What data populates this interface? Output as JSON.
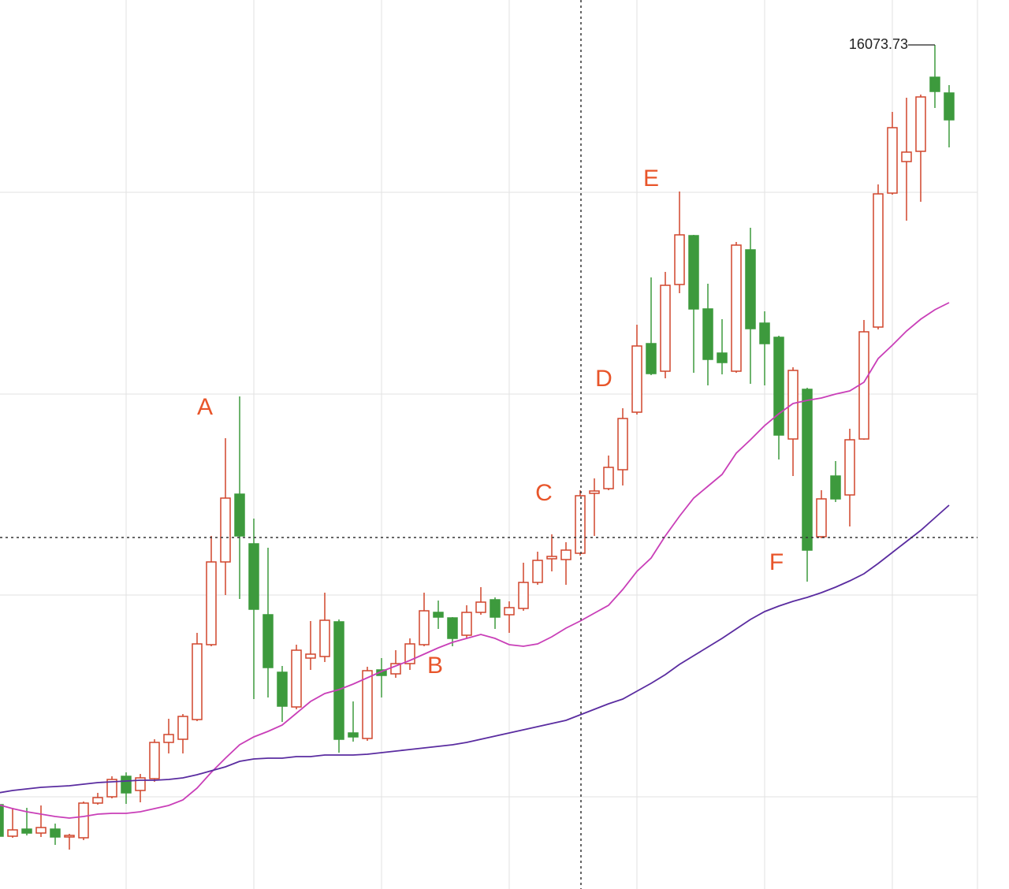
{
  "chart_data": {
    "type": "candlestick",
    "categories": [
      null,
      null,
      null,
      null,
      null,
      null,
      null,
      null,
      null,
      null,
      null,
      null,
      null,
      null,
      null,
      null,
      null,
      null,
      null,
      null,
      null,
      null,
      null,
      null,
      null,
      null,
      null,
      null,
      null,
      null,
      null,
      null,
      null,
      null,
      null,
      null,
      null,
      null,
      null,
      null,
      null,
      null,
      null,
      null,
      null,
      null,
      null,
      null,
      null,
      null,
      null,
      null,
      null,
      null,
      null,
      null,
      null,
      null,
      null,
      null,
      null,
      null,
      null,
      null,
      null,
      null,
      null,
      null
    ],
    "open": [
      6434,
      6034,
      6124,
      6074,
      6124,
      6024,
      6014,
      6454,
      6534,
      6794,
      6614,
      6764,
      7224,
      7264,
      7514,
      8464,
      9514,
      10374,
      9744,
      8844,
      8114,
      7674,
      8294,
      8314,
      8754,
      7344,
      7274,
      8144,
      8094,
      8224,
      8464,
      8874,
      8804,
      8584,
      8874,
      9034,
      8844,
      8924,
      9254,
      9554,
      9544,
      9624,
      10384,
      10444,
      10684,
      11414,
      12284,
      11934,
      13034,
      13654,
      12724,
      12164,
      11934,
      13474,
      12544,
      12364,
      11074,
      11704,
      9834,
      10604,
      10364,
      11074,
      12494,
      14194,
      14594,
      14724,
      15664,
      15464
    ],
    "high": [
      6484,
      6394,
      6394,
      6424,
      6194,
      6064,
      6474,
      6584,
      6794,
      6844,
      6824,
      7264,
      7524,
      7584,
      8614,
      9844,
      11084,
      11614,
      10064,
      9694,
      8194,
      8464,
      8764,
      9124,
      8784,
      7744,
      8184,
      8294,
      8394,
      8544,
      9124,
      9024,
      8814,
      8964,
      9194,
      9064,
      9014,
      9504,
      9644,
      9864,
      9764,
      10424,
      10574,
      10864,
      11464,
      12524,
      13124,
      13194,
      14214,
      13664,
      13044,
      12594,
      13574,
      13754,
      12694,
      12384,
      11984,
      11724,
      10424,
      10794,
      11204,
      12584,
      14304,
      15224,
      15404,
      15444,
      16073.73,
      15564
    ],
    "low": [
      5984,
      6014,
      6044,
      6024,
      5924,
      5864,
      5984,
      6434,
      6514,
      6444,
      6464,
      6724,
      7084,
      7084,
      7494,
      8444,
      9094,
      9044,
      7774,
      7794,
      7484,
      7644,
      8144,
      8244,
      7094,
      7234,
      7244,
      7794,
      8044,
      8144,
      8444,
      8664,
      8444,
      8544,
      8844,
      8664,
      8614,
      8894,
      9224,
      9394,
      9224,
      9594,
      9844,
      10424,
      10484,
      11384,
      11884,
      11844,
      12924,
      11914,
      11754,
      11894,
      11914,
      11774,
      11754,
      10814,
      10604,
      9264,
      9814,
      10274,
      9964,
      11064,
      12464,
      14174,
      13844,
      14084,
      15274,
      14774
    ],
    "close": [
      6034,
      6114,
      6074,
      6144,
      6024,
      6044,
      6454,
      6524,
      6754,
      6584,
      6774,
      7224,
      7324,
      7554,
      8474,
      9514,
      10324,
      9844,
      8914,
      8174,
      7684,
      8394,
      8344,
      8774,
      7264,
      7294,
      8134,
      8074,
      8224,
      8474,
      8894,
      8814,
      8544,
      8874,
      9004,
      8814,
      8934,
      9254,
      9534,
      9584,
      9664,
      10354,
      10414,
      10714,
      11334,
      12254,
      11904,
      13024,
      13664,
      12724,
      12084,
      12044,
      13534,
      12474,
      12284,
      11124,
      11944,
      9664,
      10314,
      10314,
      11064,
      12434,
      14184,
      15024,
      14714,
      15414,
      15484,
      15124
    ],
    "up_color": "#d0452b",
    "down_color": "#3d9a3d",
    "lines": [
      {
        "color": "#c93fb8",
        "values": [
          6434,
          6384,
          6344,
          6314,
          6284,
          6264,
          6284,
          6314,
          6324,
          6324,
          6344,
          6384,
          6424,
          6494,
          6644,
          6844,
          7024,
          7194,
          7294,
          7364,
          7444,
          7594,
          7744,
          7844,
          7894,
          7964,
          8044,
          8124,
          8194,
          8264,
          8344,
          8424,
          8494,
          8544,
          8594,
          8544,
          8464,
          8444,
          8474,
          8564,
          8674,
          8764,
          8864,
          8964,
          9164,
          9394,
          9564,
          9844,
          10094,
          10324,
          10474,
          10624,
          10894,
          11064,
          11244,
          11394,
          11524,
          11564,
          11594,
          11644,
          11684,
          11794,
          12094,
          12264,
          12444,
          12594,
          12714,
          12804
        ]
      },
      {
        "color": "#5a2ca0",
        "values": [
          6584,
          6614,
          6634,
          6654,
          6664,
          6674,
          6694,
          6714,
          6724,
          6734,
          6744,
          6744,
          6754,
          6774,
          6814,
          6864,
          6914,
          6984,
          7014,
          7024,
          7024,
          7044,
          7044,
          7064,
          7064,
          7064,
          7074,
          7094,
          7114,
          7134,
          7154,
          7174,
          7194,
          7224,
          7264,
          7304,
          7344,
          7384,
          7424,
          7464,
          7504,
          7574,
          7644,
          7714,
          7774,
          7874,
          7974,
          8084,
          8214,
          8324,
          8434,
          8544,
          8664,
          8784,
          8884,
          8954,
          9014,
          9064,
          9124,
          9194,
          9274,
          9364,
          9494,
          9634,
          9774,
          9914,
          10074,
          10234
        ]
      }
    ],
    "annotations": [
      "A",
      "B",
      "C",
      "D",
      "E",
      "F"
    ],
    "ylim": [
      5364,
      16644
    ],
    "yticks": [
      14204,
      11644,
      9094,
      6534
    ],
    "grid": true
  }
}
